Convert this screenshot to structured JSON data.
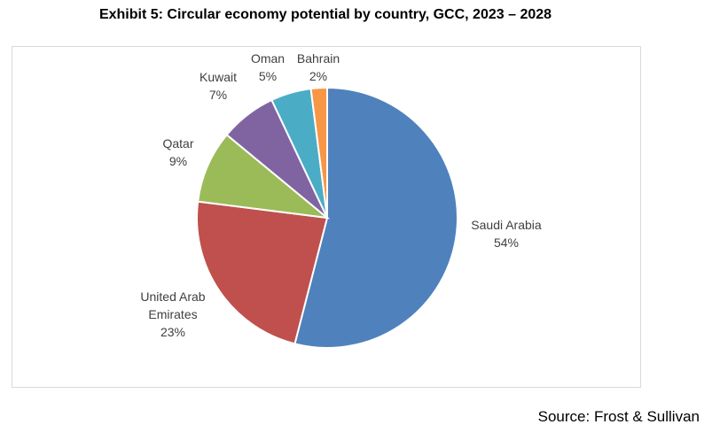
{
  "chart_data": {
    "type": "pie",
    "title": "Exhibit 5: Circular economy potential by country, GCC, 2023 – 2028",
    "categories": [
      "Saudi Arabia",
      "United Arab Emirates",
      "Qatar",
      "Kuwait",
      "Oman",
      "Bahrain"
    ],
    "values": [
      54,
      23,
      9,
      7,
      5,
      2
    ],
    "value_labels": [
      "54%",
      "23%",
      "9%",
      "7%",
      "5%",
      "2%"
    ],
    "colors": [
      "#4f81bd",
      "#c0504d",
      "#9bbb59",
      "#8064a2",
      "#4bacc6",
      "#f79646"
    ],
    "source": "Source: Frost & Sullivan"
  }
}
